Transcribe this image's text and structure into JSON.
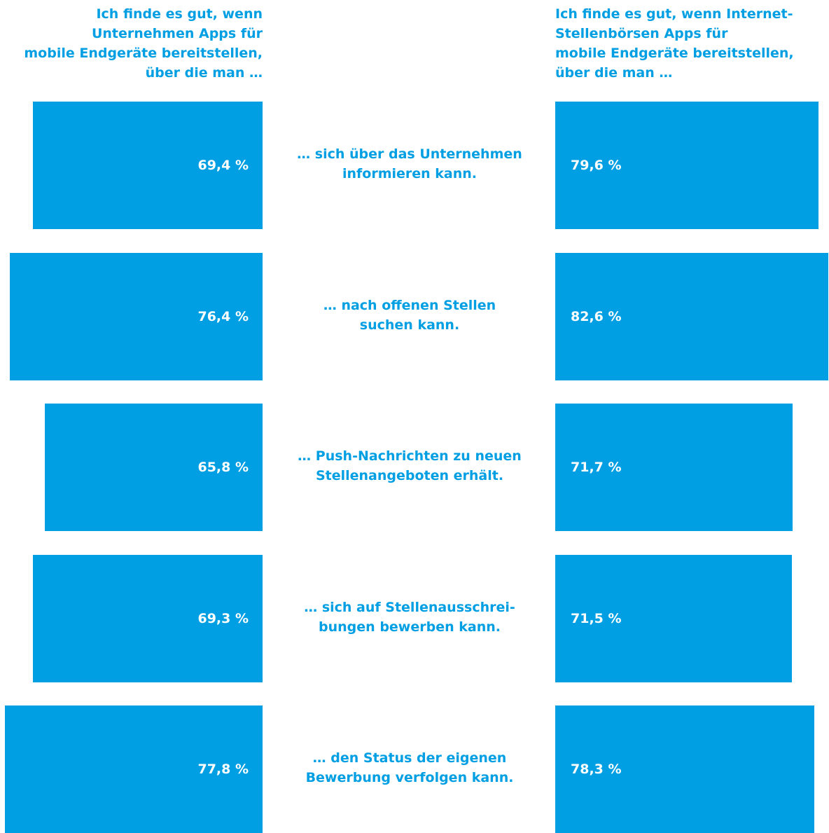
{
  "chart_data": {
    "type": "butterfly-bar",
    "categories": [
      "… sich über das Unternehmen\ninformieren kann.",
      "… nach offenen Stellen\nsuchen kann.",
      "… Push-Nachrichten zu neuen\nStellenangeboten erhält.",
      "… sich auf Stellenausschrei-\nbungen bewerben kann.",
      "… den Status der eigenen\nBewerbung verfolgen kann."
    ],
    "series": [
      {
        "name": "Ich finde es gut, wenn\nUnternehmen Apps für\nmobile Endgeräte bereitstellen,\nüber die man …",
        "color": "#009fe3",
        "values": [
          69.4,
          76.4,
          65.8,
          69.3,
          77.8
        ],
        "value_labels": [
          "69,4 %",
          "76,4 %",
          "65,8 %",
          "69,3 %",
          "77,8 %"
        ]
      },
      {
        "name": "Ich finde es gut, wenn Internet-\nStellenbörsen Apps für\nmobile Endgeräte bereitstellen,\nüber die man …",
        "color": "#009fe3",
        "values": [
          79.6,
          82.6,
          71.7,
          71.5,
          78.3
        ],
        "value_labels": [
          "79,6 %",
          "82,6 %",
          "71,7 %",
          "71,5 %",
          "78,3 %"
        ]
      }
    ]
  }
}
